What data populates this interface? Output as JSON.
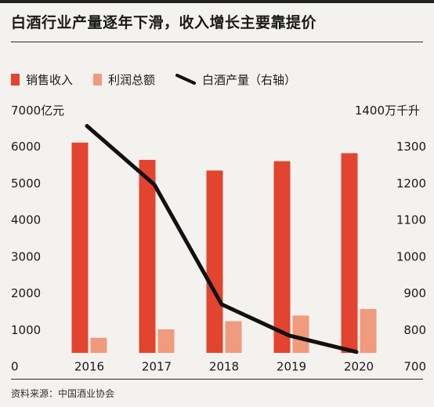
{
  "title": "白酒行业产量逐年下滑，收入增长主要靠提价",
  "source": "资料来源：中国酒业协会",
  "chart_data": {
    "type": "bar",
    "title": "白酒行业产量逐年下滑，收入增长主要靠提价",
    "categories": [
      "2016",
      "2017",
      "2018",
      "2019",
      "2020"
    ],
    "y_left_unit": "7000亿元",
    "y_right_unit": "1400万千升",
    "y_left_ticks": [
      "0",
      "1000",
      "2000",
      "3000",
      "4000",
      "5000",
      "6000"
    ],
    "y_right_ticks": [
      "700",
      "800",
      "900",
      "1000",
      "1100",
      "1200",
      "1300"
    ],
    "ylim_left": [
      0,
      7000
    ],
    "ylim_right": [
      700,
      1400
    ],
    "series": [
      {
        "name": "销售收入",
        "kind": "bar",
        "axis": "left",
        "color": "#e2442f",
        "values": [
          6126,
          5654,
          5364,
          5618,
          5836
        ]
      },
      {
        "name": "利润总额",
        "kind": "bar",
        "axis": "left",
        "color": "#f09a7e",
        "values": [
          797,
          1028,
          1250,
          1404,
          1585
        ]
      },
      {
        "name": "白酒产量（右轴）",
        "kind": "line",
        "axis": "right",
        "color": "#111111",
        "values": [
          1358,
          1198,
          871,
          786,
          741
        ]
      }
    ],
    "grid": false
  }
}
